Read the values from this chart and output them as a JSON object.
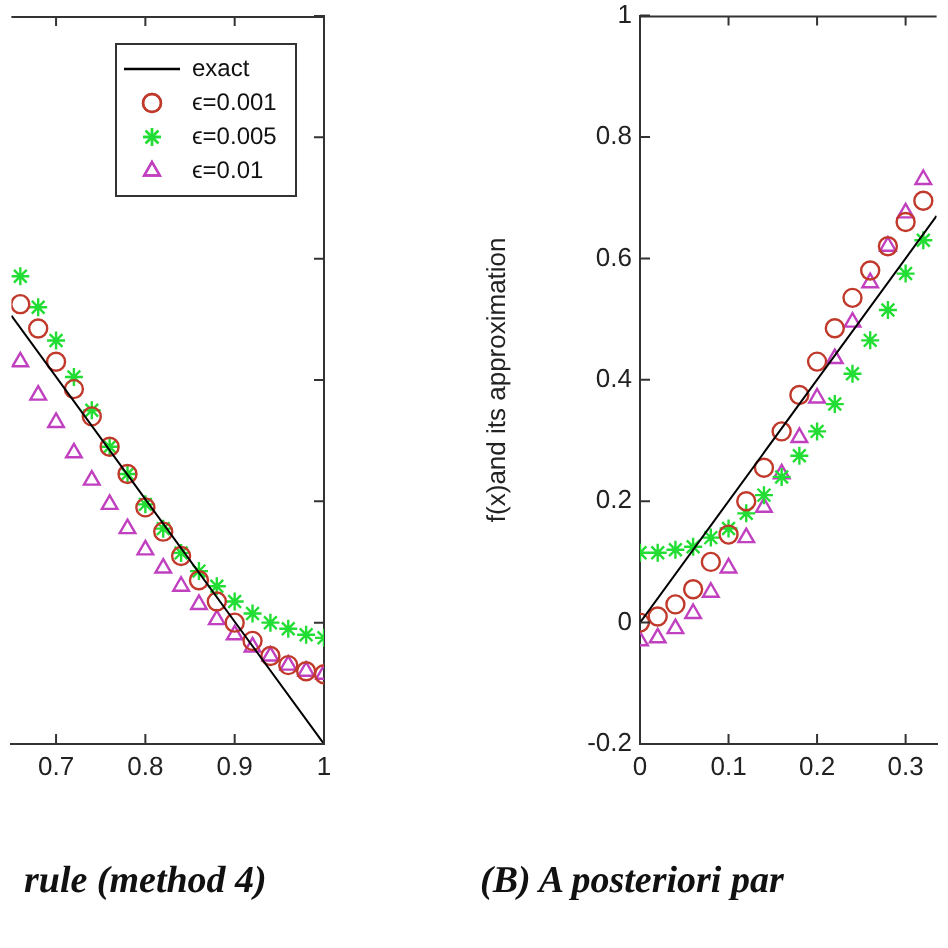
{
  "chart_data": [
    {
      "type": "scatter",
      "title": "rule (method 4)",
      "xlim": [
        0.65,
        1
      ],
      "ylim": [
        -0.2,
        1
      ],
      "xticks": [
        0.7,
        0.8,
        0.9,
        1
      ],
      "yticks": [
        {
          "value": -0.2,
          "label": null
        },
        {
          "value": 0,
          "label": null
        },
        {
          "value": 0.2,
          "label": null
        },
        {
          "value": 0.4,
          "label": null
        },
        {
          "value": 0.6,
          "label": null
        },
        {
          "value": 0.8,
          "label": null
        },
        {
          "value": 1,
          "label": null
        }
      ],
      "tick_labels": "x",
      "legend": "top right",
      "grid": false,
      "series": [
        {
          "name": "exact",
          "type": "line",
          "marker": "none",
          "color": "#000000",
          "x": [
            0.65,
            1
          ],
          "values": [
            0.506,
            -0.2
          ]
        },
        {
          "name": "ϵ=0.001",
          "type": "scatter",
          "marker": "circle",
          "color": "#c0392b",
          "x": [
            0.66,
            0.68,
            0.7,
            0.72,
            0.74,
            0.76,
            0.78,
            0.8,
            0.82,
            0.84,
            0.86,
            0.88,
            0.9,
            0.92,
            0.94,
            0.96,
            0.98,
            1
          ],
          "values": [
            0.525,
            0.485,
            0.43,
            0.385,
            0.34,
            0.29,
            0.245,
            0.19,
            0.15,
            0.11,
            0.07,
            0.035,
            0,
            -0.03,
            -0.055,
            -0.07,
            -0.08,
            -0.085
          ]
        },
        {
          "name": "ϵ=0.005",
          "type": "scatter",
          "marker": "cross",
          "color": "#22dd33",
          "x": [
            0.66,
            0.68,
            0.7,
            0.72,
            0.74,
            0.76,
            0.78,
            0.8,
            0.82,
            0.84,
            0.86,
            0.88,
            0.9,
            0.92,
            0.94,
            0.96,
            0.98,
            1
          ],
          "values": [
            0.571,
            0.52,
            0.465,
            0.405,
            0.35,
            0.29,
            0.245,
            0.195,
            0.155,
            0.115,
            0.085,
            0.06,
            0.035,
            0.015,
            0,
            -0.01,
            -0.02,
            -0.025
          ]
        },
        {
          "name": "ϵ=0.01",
          "type": "scatter",
          "marker": "triangle",
          "color": "#c040c0",
          "x": [
            0.66,
            0.68,
            0.7,
            0.72,
            0.74,
            0.76,
            0.78,
            0.8,
            0.82,
            0.84,
            0.86,
            0.88,
            0.9,
            0.92,
            0.94,
            0.96,
            0.98,
            1
          ],
          "values": [
            0.43,
            0.375,
            0.33,
            0.28,
            0.235,
            0.195,
            0.155,
            0.12,
            0.09,
            0.06,
            0.03,
            0.005,
            -0.02,
            -0.04,
            -0.055,
            -0.07,
            -0.08,
            -0.085
          ]
        }
      ]
    },
    {
      "type": "scatter",
      "title": "(B) A posteriori par",
      "ylabel": "f(x)and its approximation",
      "xlim": [
        0,
        0.335
      ],
      "ylim": [
        -0.2,
        1
      ],
      "xticks": [
        0,
        0.1,
        0.2,
        0.3
      ],
      "yticks": [
        -0.2,
        0,
        0.2,
        0.4,
        0.6,
        0.8,
        1
      ],
      "grid": false,
      "series": [
        {
          "type": "line",
          "marker": "none",
          "color": "#000000",
          "x": [
            0,
            0.335
          ],
          "values": [
            0,
            0.67
          ]
        },
        {
          "type": "scatter",
          "marker": "circle",
          "color": "#c0392b",
          "x": [
            0,
            0.02,
            0.04,
            0.06,
            0.08,
            0.1,
            0.12,
            0.14,
            0.16,
            0.18,
            0.2,
            0.22,
            0.24,
            0.26,
            0.28,
            0.3,
            0.32
          ],
          "values": [
            0,
            0.01,
            0.03,
            0.055,
            0.1,
            0.145,
            0.2,
            0.255,
            0.315,
            0.375,
            0.43,
            0.485,
            0.535,
            0.58,
            0.62,
            0.66,
            0.695
          ]
        },
        {
          "type": "scatter",
          "marker": "cross",
          "color": "#22dd33",
          "x": [
            0,
            0.02,
            0.04,
            0.06,
            0.08,
            0.1,
            0.12,
            0.14,
            0.16,
            0.18,
            0.2,
            0.22,
            0.24,
            0.26,
            0.28,
            0.3,
            0.32
          ],
          "values": [
            0.115,
            0.115,
            0.12,
            0.125,
            0.14,
            0.155,
            0.18,
            0.21,
            0.24,
            0.275,
            0.315,
            0.36,
            0.41,
            0.465,
            0.515,
            0.575,
            0.63
          ]
        },
        {
          "type": "scatter",
          "marker": "triangle",
          "color": "#c040c0",
          "x": [
            0,
            0.02,
            0.04,
            0.06,
            0.08,
            0.1,
            0.12,
            0.14,
            0.16,
            0.18,
            0.2,
            0.22,
            0.24,
            0.26,
            0.28,
            0.3,
            0.32
          ],
          "values": [
            -0.03,
            -0.025,
            -0.01,
            0.015,
            0.05,
            0.09,
            0.14,
            0.19,
            0.245,
            0.305,
            0.37,
            0.435,
            0.495,
            0.56,
            0.62,
            0.675,
            0.73
          ]
        }
      ]
    }
  ]
}
